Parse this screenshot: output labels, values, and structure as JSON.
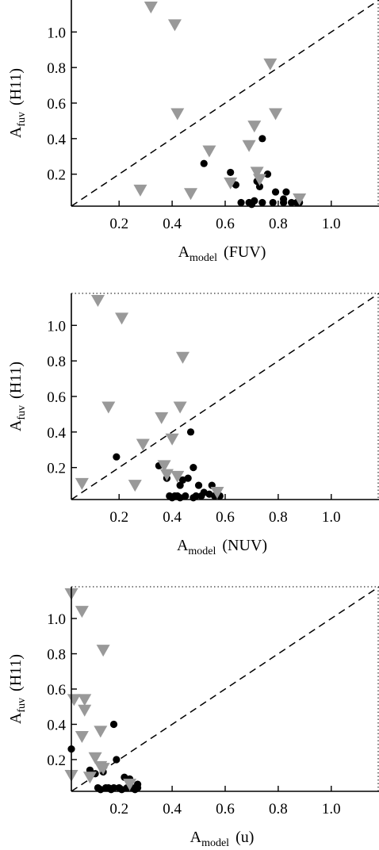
{
  "colors": {
    "axes": "#000000",
    "circles": "#000000",
    "triangles": "#999999",
    "background": "#ffffff"
  },
  "chart_data": [
    {
      "type": "scatter",
      "xlabel": {
        "main": "A",
        "sub": "model",
        "suffix": "(FUV)"
      },
      "ylabel": {
        "main": "A",
        "sub": "fuv",
        "suffix": "(H11)"
      },
      "xlim": [
        0.02,
        1.18
      ],
      "ylim": [
        0.02,
        1.18
      ],
      "xticks": [
        "0.2",
        "0.4",
        "0.6",
        "0.8",
        "1.0"
      ],
      "yticks": [
        "0.2",
        "0.4",
        "0.6",
        "0.8",
        "1.0"
      ],
      "reference_line": "y = x (dashed)",
      "series": [
        {
          "marker": "filled-circle",
          "points": [
            [
              0.52,
              0.26
            ],
            [
              0.62,
              0.21
            ],
            [
              0.64,
              0.14
            ],
            [
              0.66,
              0.04
            ],
            [
              0.69,
              0.04
            ],
            [
              0.7,
              0.03
            ],
            [
              0.71,
              0.05
            ],
            [
              0.72,
              0.16
            ],
            [
              0.73,
              0.13
            ],
            [
              0.74,
              0.4
            ],
            [
              0.74,
              0.04
            ],
            [
              0.76,
              0.2
            ],
            [
              0.78,
              0.04
            ],
            [
              0.79,
              0.1
            ],
            [
              0.82,
              0.06
            ],
            [
              0.82,
              0.04
            ],
            [
              0.83,
              0.1
            ],
            [
              0.85,
              0.04
            ],
            [
              0.87,
              0.04
            ],
            [
              0.88,
              0.04
            ]
          ]
        },
        {
          "marker": "down-triangle",
          "points": [
            [
              0.32,
              1.14
            ],
            [
              0.41,
              1.04
            ],
            [
              0.42,
              0.54
            ],
            [
              0.54,
              0.33
            ],
            [
              0.28,
              0.11
            ],
            [
              0.47,
              0.09
            ],
            [
              0.62,
              0.15
            ],
            [
              0.69,
              0.36
            ],
            [
              0.71,
              0.47
            ],
            [
              0.72,
              0.21
            ],
            [
              0.73,
              0.17
            ],
            [
              0.77,
              0.82
            ],
            [
              0.79,
              0.54
            ],
            [
              0.88,
              0.06
            ]
          ]
        }
      ]
    },
    {
      "type": "scatter",
      "xlabel": {
        "main": "A",
        "sub": "model",
        "suffix": "(NUV)"
      },
      "ylabel": {
        "main": "A",
        "sub": "fuv",
        "suffix": "(H11)"
      },
      "xlim": [
        0.02,
        1.18
      ],
      "ylim": [
        0.02,
        1.18
      ],
      "xticks": [
        "0.2",
        "0.4",
        "0.6",
        "0.8",
        "1.0"
      ],
      "yticks": [
        "0.2",
        "0.4",
        "0.6",
        "0.8",
        "1.0"
      ],
      "reference_line": "y = x (dashed)",
      "series": [
        {
          "marker": "filled-circle",
          "points": [
            [
              0.19,
              0.26
            ],
            [
              0.35,
              0.21
            ],
            [
              0.38,
              0.14
            ],
            [
              0.39,
              0.04
            ],
            [
              0.4,
              0.03
            ],
            [
              0.41,
              0.04
            ],
            [
              0.42,
              0.04
            ],
            [
              0.43,
              0.03
            ],
            [
              0.43,
              0.1
            ],
            [
              0.44,
              0.13
            ],
            [
              0.45,
              0.04
            ],
            [
              0.46,
              0.14
            ],
            [
              0.47,
              0.4
            ],
            [
              0.48,
              0.03
            ],
            [
              0.48,
              0.2
            ],
            [
              0.49,
              0.04
            ],
            [
              0.5,
              0.1
            ],
            [
              0.51,
              0.04
            ],
            [
              0.52,
              0.06
            ],
            [
              0.54,
              0.05
            ],
            [
              0.55,
              0.1
            ],
            [
              0.56,
              0.04
            ],
            [
              0.58,
              0.04
            ]
          ]
        },
        {
          "marker": "down-triangle",
          "points": [
            [
              0.12,
              1.14
            ],
            [
              0.21,
              1.04
            ],
            [
              0.16,
              0.54
            ],
            [
              0.06,
              0.11
            ],
            [
              0.26,
              0.1
            ],
            [
              0.29,
              0.33
            ],
            [
              0.36,
              0.48
            ],
            [
              0.37,
              0.21
            ],
            [
              0.38,
              0.16
            ],
            [
              0.4,
              0.36
            ],
            [
              0.42,
              0.15
            ],
            [
              0.43,
              0.54
            ],
            [
              0.44,
              0.82
            ],
            [
              0.57,
              0.06
            ]
          ]
        }
      ]
    },
    {
      "type": "scatter",
      "xlabel": {
        "main": "A",
        "sub": "model",
        "suffix": "(u)"
      },
      "ylabel": {
        "main": "A",
        "sub": "fuv",
        "suffix": "(H11)"
      },
      "xlim": [
        0.02,
        1.18
      ],
      "ylim": [
        0.02,
        1.18
      ],
      "xticks": [
        "0.2",
        "0.4",
        "0.6",
        "0.8",
        "1.0"
      ],
      "yticks": [
        "0.2",
        "0.4",
        "0.6",
        "0.8",
        "1.0"
      ],
      "reference_line": "y = x (dashed)",
      "series": [
        {
          "marker": "filled-circle",
          "points": [
            [
              0.02,
              0.26
            ],
            [
              0.09,
              0.14
            ],
            [
              0.11,
              0.12
            ],
            [
              0.12,
              0.04
            ],
            [
              0.13,
              0.03
            ],
            [
              0.14,
              0.13
            ],
            [
              0.15,
              0.04
            ],
            [
              0.16,
              0.04
            ],
            [
              0.17,
              0.03
            ],
            [
              0.18,
              0.4
            ],
            [
              0.18,
              0.04
            ],
            [
              0.19,
              0.2
            ],
            [
              0.2,
              0.04
            ],
            [
              0.21,
              0.03
            ],
            [
              0.22,
              0.1
            ],
            [
              0.23,
              0.04
            ],
            [
              0.24,
              0.09
            ],
            [
              0.25,
              0.04
            ],
            [
              0.26,
              0.03
            ],
            [
              0.27,
              0.06
            ],
            [
              0.27,
              0.04
            ]
          ]
        },
        {
          "marker": "down-triangle",
          "points": [
            [
              0.02,
              1.14
            ],
            [
              0.06,
              1.04
            ],
            [
              0.03,
              0.54
            ],
            [
              0.07,
              0.54
            ],
            [
              0.07,
              0.48
            ],
            [
              0.06,
              0.33
            ],
            [
              0.02,
              0.11
            ],
            [
              0.09,
              0.1
            ],
            [
              0.11,
              0.21
            ],
            [
              0.13,
              0.36
            ],
            [
              0.13,
              0.16
            ],
            [
              0.14,
              0.15
            ],
            [
              0.14,
              0.82
            ],
            [
              0.24,
              0.06
            ]
          ]
        }
      ]
    }
  ]
}
